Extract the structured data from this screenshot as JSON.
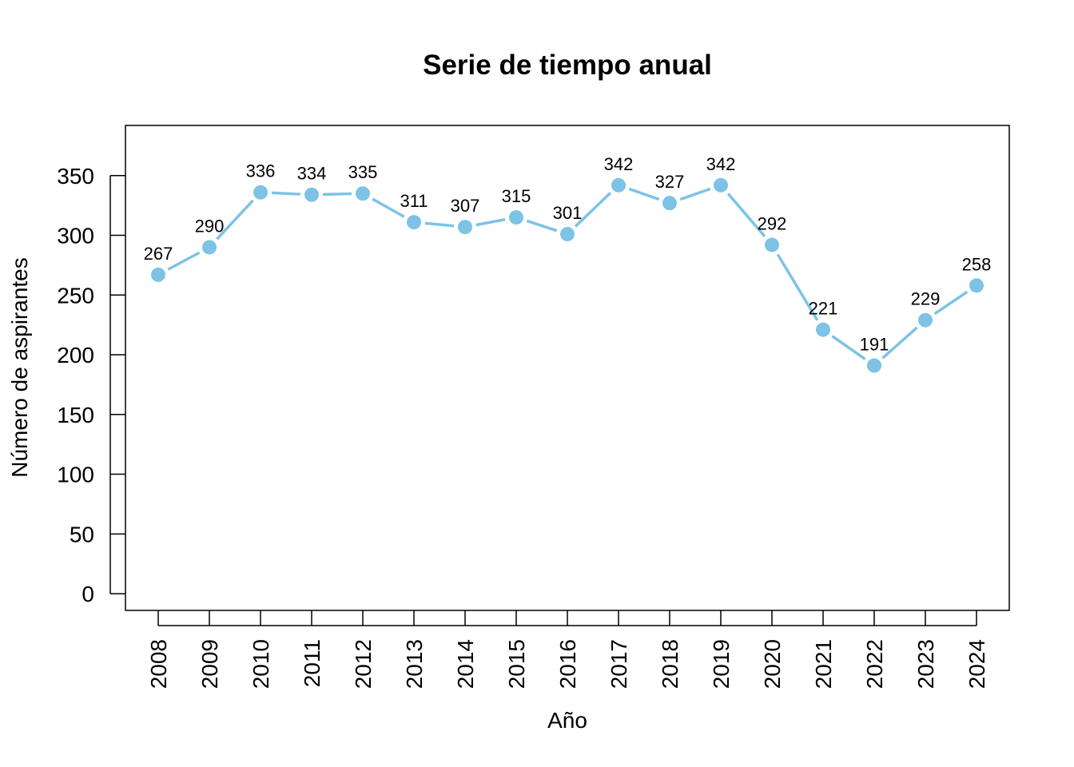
{
  "chart_data": {
    "type": "line",
    "title": "Serie de tiempo anual",
    "xlabel": "Año",
    "ylabel": "Número de aspirantes",
    "categories": [
      "2008",
      "2009",
      "2010",
      "2011",
      "2012",
      "2013",
      "2014",
      "2015",
      "2016",
      "2017",
      "2018",
      "2019",
      "2020",
      "2021",
      "2022",
      "2023",
      "2024"
    ],
    "series": [
      {
        "values": [
          267,
          290,
          336,
          334,
          335,
          311,
          307,
          315,
          301,
          342,
          327,
          342,
          292,
          221,
          191,
          229,
          258
        ]
      }
    ],
    "yticks": [
      0,
      50,
      100,
      150,
      200,
      250,
      300,
      350
    ],
    "ylim": [
      -14,
      392
    ],
    "data_labels": true,
    "grid": false,
    "colors": {
      "series": "#7CC3E6",
      "axis": "#000000"
    }
  }
}
